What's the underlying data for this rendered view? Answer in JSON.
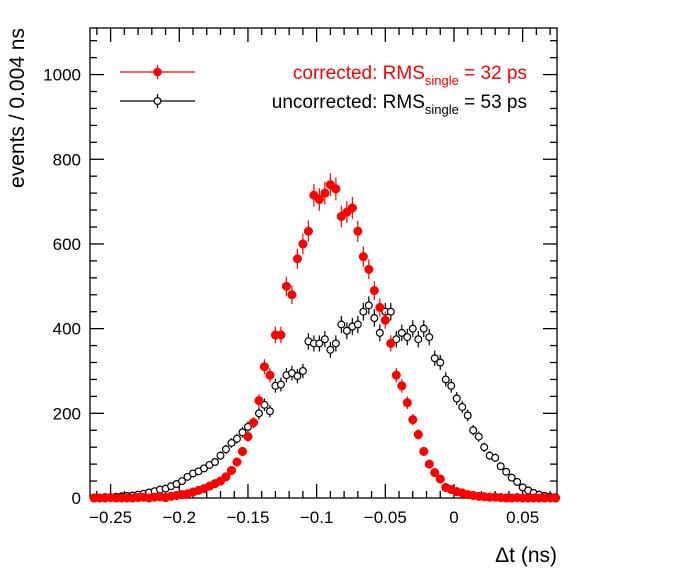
{
  "chart_data": {
    "type": "scatter",
    "xlabel": "Δt (ns)",
    "ylabel": "events / 0.004 ns",
    "xlim": [
      -0.265,
      0.075
    ],
    "ylim": [
      0,
      1110
    ],
    "x_ticks": [
      -0.25,
      -0.2,
      -0.15,
      -0.1,
      -0.05,
      0,
      0.05
    ],
    "x_tick_labels": [
      "−0.25",
      "−0.2",
      "−0.15",
      "−0.1",
      "−0.05",
      "0",
      "0.05"
    ],
    "y_ticks": [
      0,
      200,
      400,
      600,
      800,
      1000
    ],
    "y_tick_labels": [
      "0",
      "200",
      "400",
      "600",
      "800",
      "1000"
    ],
    "grid": false,
    "legend_position": "top-right",
    "series": [
      {
        "name": "corrected: RMS single = 32 ps",
        "legend": {
          "prefix": "corrected: RMS",
          "subscript": "single",
          "suffix": " = 32 ps"
        },
        "marker": "filled-circle",
        "color": "#ff0000",
        "x": [
          -0.262,
          -0.258,
          -0.254,
          -0.25,
          -0.246,
          -0.242,
          -0.238,
          -0.234,
          -0.23,
          -0.226,
          -0.222,
          -0.218,
          -0.214,
          -0.21,
          -0.206,
          -0.202,
          -0.198,
          -0.194,
          -0.19,
          -0.186,
          -0.182,
          -0.178,
          -0.174,
          -0.17,
          -0.166,
          -0.162,
          -0.158,
          -0.154,
          -0.15,
          -0.146,
          -0.142,
          -0.138,
          -0.134,
          -0.13,
          -0.126,
          -0.122,
          -0.118,
          -0.114,
          -0.11,
          -0.106,
          -0.102,
          -0.098,
          -0.094,
          -0.09,
          -0.086,
          -0.082,
          -0.078,
          -0.074,
          -0.07,
          -0.066,
          -0.062,
          -0.058,
          -0.054,
          -0.05,
          -0.046,
          -0.042,
          -0.038,
          -0.034,
          -0.03,
          -0.026,
          -0.022,
          -0.018,
          -0.014,
          -0.01,
          -0.006,
          -0.002,
          0.002,
          0.006,
          0.01,
          0.014,
          0.018,
          0.022,
          0.026,
          0.03,
          0.034,
          0.038,
          0.042,
          0.046,
          0.05,
          0.054,
          0.058,
          0.062,
          0.066,
          0.07,
          0.074
        ],
        "y": [
          0,
          0,
          0,
          1,
          0,
          0,
          0,
          0,
          1,
          2,
          0,
          2,
          3,
          1,
          4,
          6,
          8,
          10,
          14,
          18,
          22,
          28,
          34,
          40,
          50,
          65,
          85,
          110,
          145,
          178,
          230,
          310,
          290,
          385,
          385,
          500,
          480,
          565,
          600,
          630,
          715,
          705,
          720,
          740,
          730,
          665,
          675,
          685,
          630,
          570,
          540,
          490,
          450,
          420,
          365,
          290,
          265,
          225,
          185,
          150,
          110,
          80,
          60,
          45,
          25,
          20,
          15,
          12,
          8,
          6,
          4,
          3,
          2,
          2,
          1,
          0,
          0,
          1,
          0,
          0,
          0,
          0,
          0,
          0,
          0
        ]
      },
      {
        "name": "uncorrected: RMS single = 53 ps",
        "legend": {
          "prefix": "uncorrected: RMS",
          "subscript": "single",
          "suffix": " = 53 ps"
        },
        "marker": "open-circle",
        "color": "#000000",
        "x": [
          -0.262,
          -0.258,
          -0.254,
          -0.25,
          -0.246,
          -0.242,
          -0.238,
          -0.234,
          -0.23,
          -0.226,
          -0.222,
          -0.218,
          -0.214,
          -0.21,
          -0.206,
          -0.202,
          -0.198,
          -0.194,
          -0.19,
          -0.186,
          -0.182,
          -0.178,
          -0.174,
          -0.17,
          -0.166,
          -0.162,
          -0.158,
          -0.154,
          -0.15,
          -0.146,
          -0.142,
          -0.138,
          -0.134,
          -0.13,
          -0.126,
          -0.122,
          -0.118,
          -0.114,
          -0.11,
          -0.106,
          -0.102,
          -0.098,
          -0.094,
          -0.09,
          -0.086,
          -0.082,
          -0.078,
          -0.074,
          -0.07,
          -0.066,
          -0.062,
          -0.058,
          -0.054,
          -0.05,
          -0.046,
          -0.042,
          -0.038,
          -0.034,
          -0.03,
          -0.026,
          -0.022,
          -0.018,
          -0.014,
          -0.01,
          -0.006,
          -0.002,
          0.002,
          0.006,
          0.01,
          0.014,
          0.018,
          0.022,
          0.026,
          0.03,
          0.034,
          0.038,
          0.042,
          0.046,
          0.05,
          0.054,
          0.058,
          0.062,
          0.066,
          0.07,
          0.074
        ],
        "y": [
          1,
          0,
          2,
          2,
          3,
          4,
          5,
          6,
          8,
          10,
          13,
          16,
          20,
          22,
          28,
          33,
          40,
          50,
          58,
          63,
          70,
          78,
          85,
          100,
          115,
          130,
          140,
          155,
          168,
          178,
          200,
          220,
          205,
          265,
          268,
          290,
          295,
          288,
          300,
          370,
          365,
          365,
          375,
          350,
          365,
          410,
          395,
          405,
          410,
          440,
          455,
          425,
          390,
          440,
          440,
          375,
          390,
          380,
          400,
          375,
          400,
          380,
          330,
          320,
          280,
          265,
          235,
          215,
          195,
          160,
          145,
          120,
          100,
          95,
          75,
          62,
          48,
          38,
          25,
          18,
          12,
          8,
          5,
          3,
          2
        ]
      }
    ]
  }
}
